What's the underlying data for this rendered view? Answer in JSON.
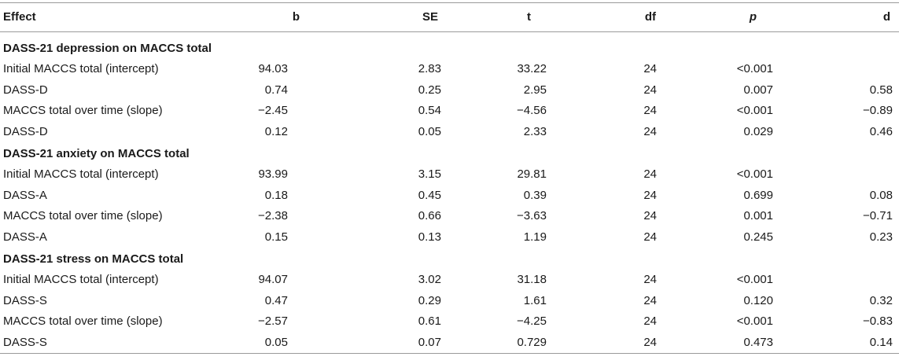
{
  "header": {
    "effect": "Effect",
    "b": "b",
    "se": "SE",
    "t": "t",
    "df": "df",
    "p": "p",
    "d": "d"
  },
  "sections": [
    {
      "title": "DASS-21 depression on MACCS total",
      "rows": [
        {
          "effect": "Initial MACCS total (intercept)",
          "b": "94.03",
          "se": "2.83",
          "t": "33.22",
          "df": "24",
          "p": "<0.001",
          "d": ""
        },
        {
          "effect": "DASS-D",
          "b": "0.74",
          "se": "0.25",
          "t": "2.95",
          "df": "24",
          "p": "0.007",
          "d": "0.58"
        },
        {
          "effect": "MACCS total over time (slope)",
          "b": "−2.45",
          "se": "0.54",
          "t": "−4.56",
          "df": "24",
          "p": "<0.001",
          "d": "−0.89"
        },
        {
          "effect": "DASS-D",
          "b": "0.12",
          "se": "0.05",
          "t": "2.33",
          "df": "24",
          "p": "0.029",
          "d": "0.46"
        }
      ]
    },
    {
      "title": "DASS-21 anxiety on MACCS total",
      "rows": [
        {
          "effect": "Initial MACCS total (intercept)",
          "b": "93.99",
          "se": "3.15",
          "t": "29.81",
          "df": "24",
          "p": "<0.001",
          "d": ""
        },
        {
          "effect": "DASS-A",
          "b": "0.18",
          "se": "0.45",
          "t": "0.39",
          "df": "24",
          "p": "0.699",
          "d": "0.08"
        },
        {
          "effect": "MACCS total over time (slope)",
          "b": "−2.38",
          "se": "0.66",
          "t": "−3.63",
          "df": "24",
          "p": "0.001",
          "d": "−0.71"
        },
        {
          "effect": "DASS-A",
          "b": "0.15",
          "se": "0.13",
          "t": "1.19",
          "df": "24",
          "p": "0.245",
          "d": "0.23"
        }
      ]
    },
    {
      "title": "DASS-21 stress on MACCS total",
      "rows": [
        {
          "effect": "Initial MACCS total (intercept)",
          "b": "94.07",
          "se": "3.02",
          "t": "31.18",
          "df": "24",
          "p": "<0.001",
          "d": ""
        },
        {
          "effect": "DASS-S",
          "b": "0.47",
          "se": "0.29",
          "t": "1.61",
          "df": "24",
          "p": "0.120",
          "d": "0.32"
        },
        {
          "effect": "MACCS total over time (slope)",
          "b": "−2.57",
          "se": "0.61",
          "t": "−4.25",
          "df": "24",
          "p": "<0.001",
          "d": "−0.83"
        },
        {
          "effect": "DASS-S",
          "b": "0.05",
          "se": "0.07",
          "t": "0.729",
          "df": "24",
          "p": "0.473",
          "d": "0.14"
        }
      ]
    }
  ]
}
